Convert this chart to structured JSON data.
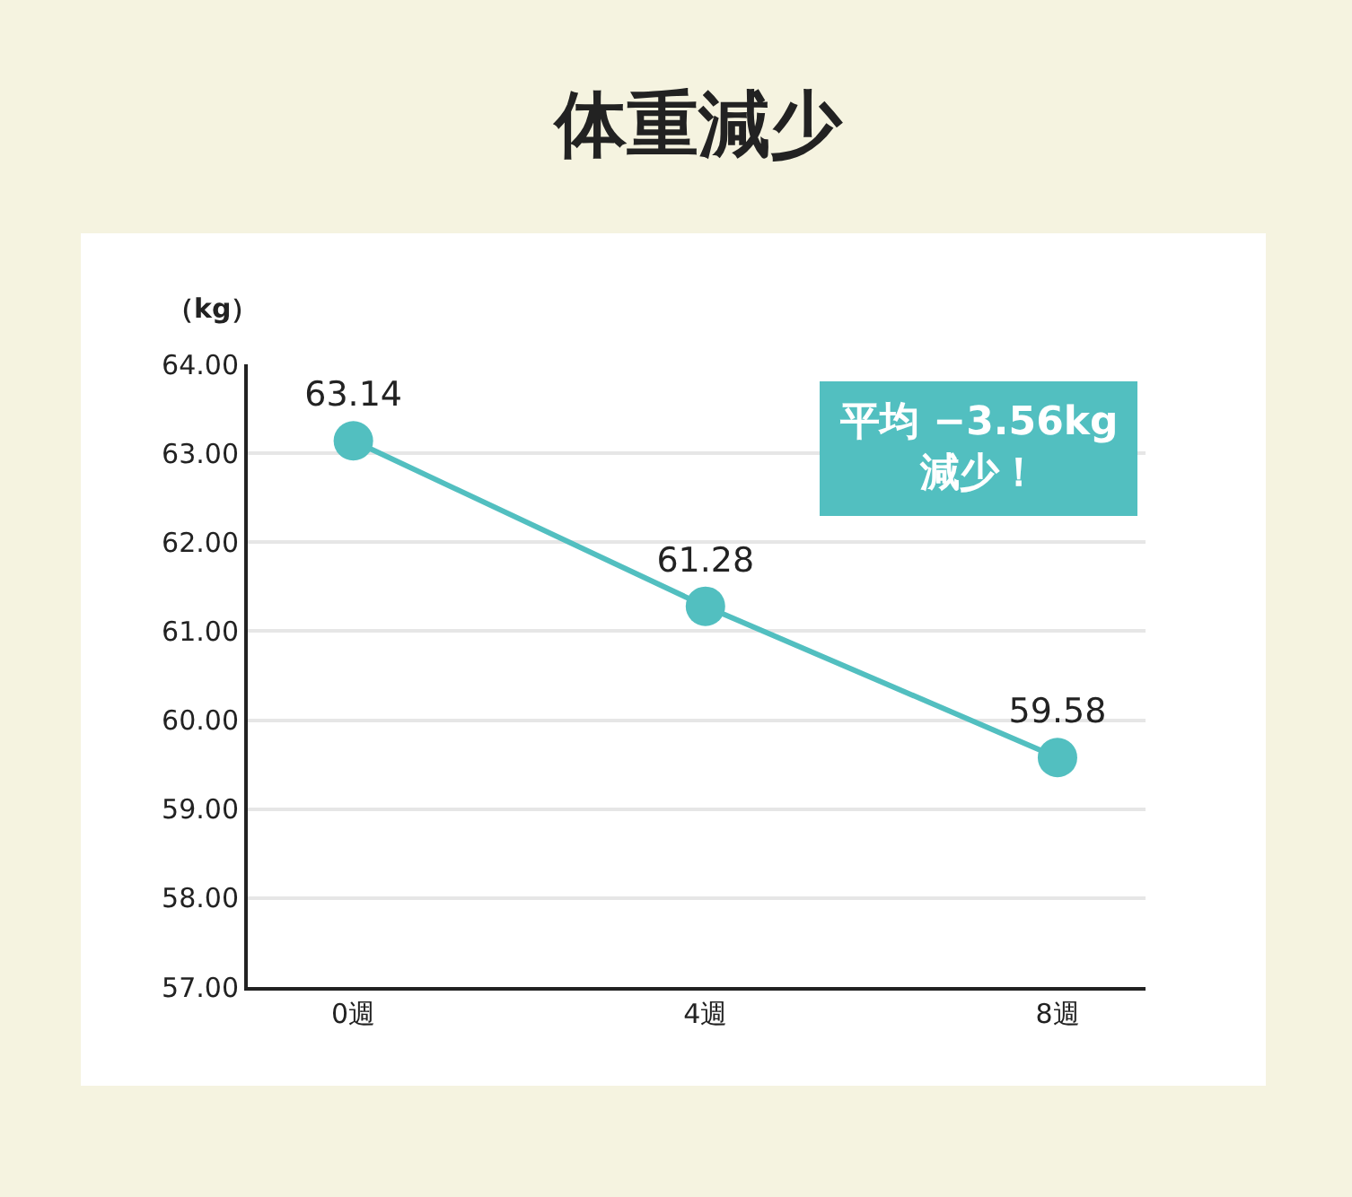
{
  "chart_data": {
    "type": "line",
    "title": "体重減少",
    "ylabel": "（kg）",
    "categories": [
      "0週",
      "4週",
      "8週"
    ],
    "series": [
      {
        "color": "#52bfc0",
        "values": [
          63.14,
          61.28,
          59.58
        ]
      }
    ],
    "ylim": [
      57,
      64
    ],
    "yticks": [
      {
        "value": 57,
        "label": "57.00"
      },
      {
        "value": 58,
        "label": "58.00"
      },
      {
        "value": 59,
        "label": "59.00"
      },
      {
        "value": 60,
        "label": "60.00"
      },
      {
        "value": 61,
        "label": "61.00"
      },
      {
        "value": 62,
        "label": "62.00"
      },
      {
        "value": 63,
        "label": "63.00"
      },
      {
        "value": 64,
        "label": "64.00"
      }
    ],
    "grid": "y",
    "marker": "circle",
    "line_style": "solid",
    "data_labels": true,
    "legend": false,
    "annotations": [
      "平均 −3.56kg\n減少！"
    ]
  }
}
